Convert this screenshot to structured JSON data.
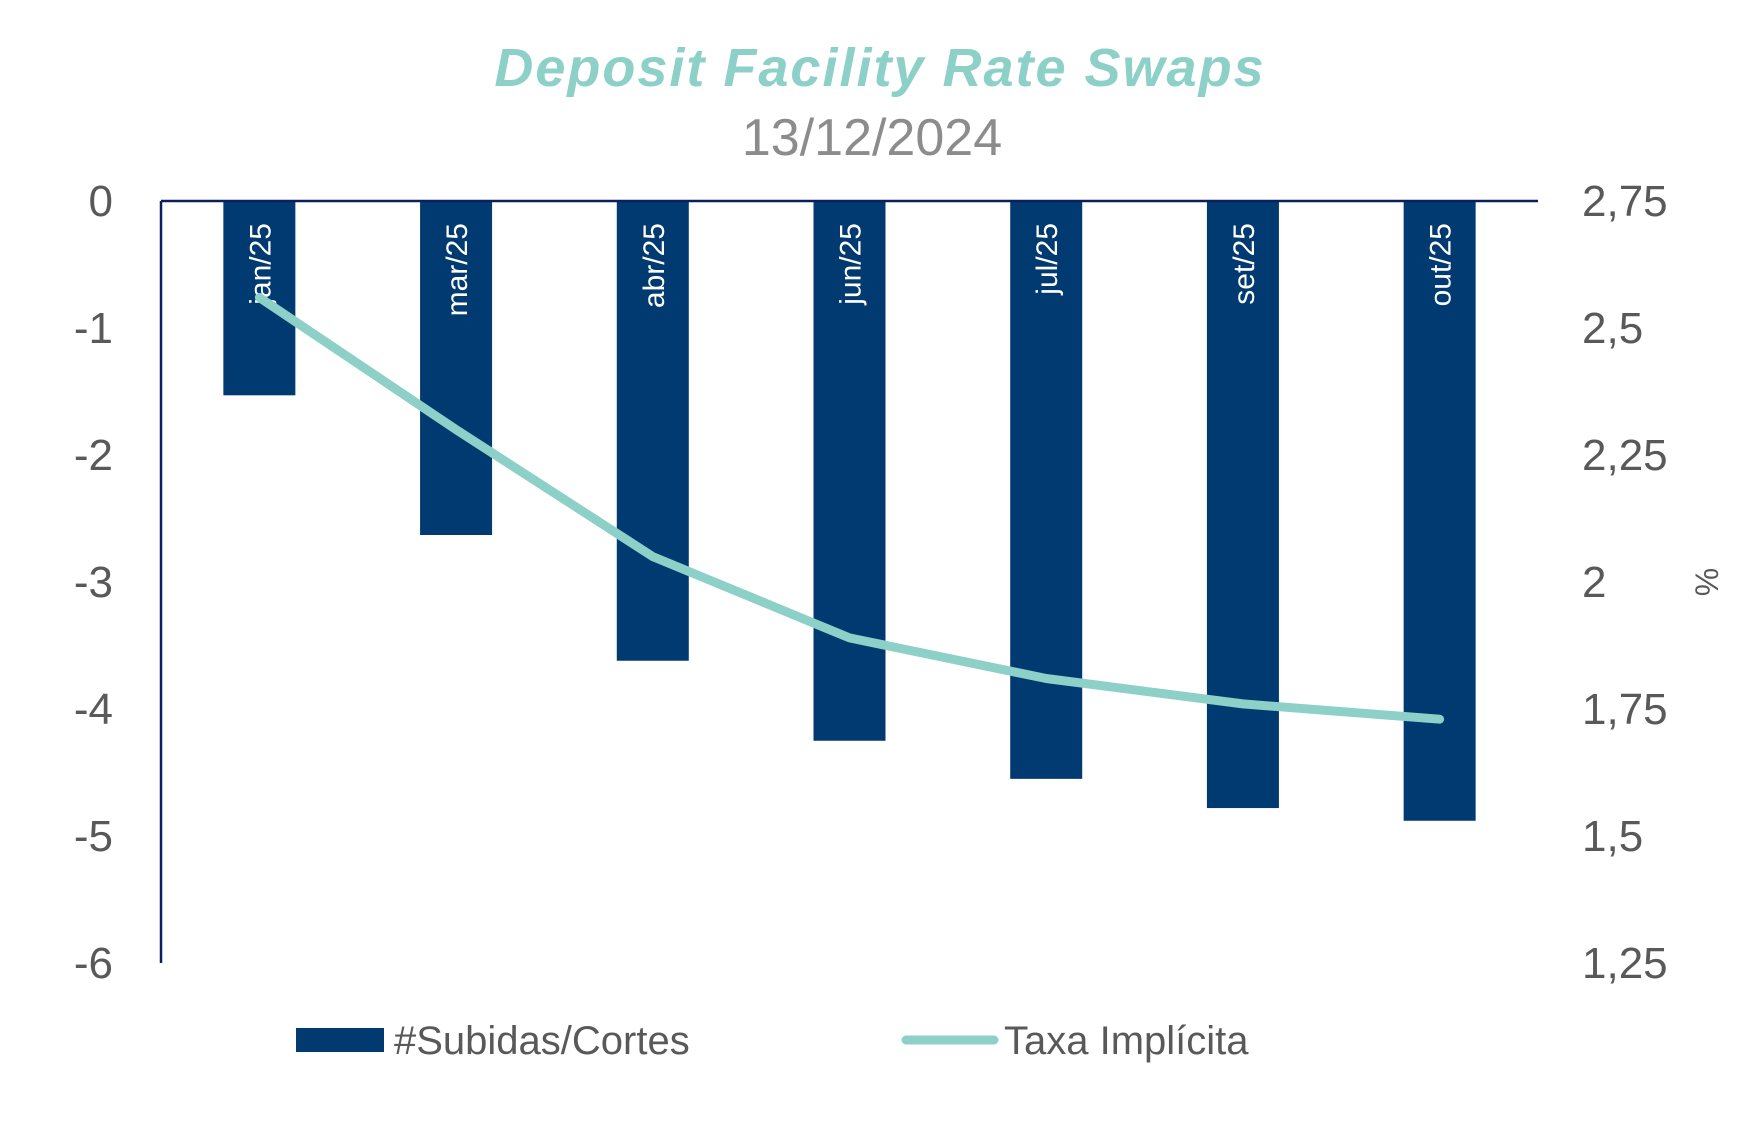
{
  "chart_data": {
    "type": "bar",
    "title": "Deposit Facility Rate Swaps",
    "subtitle": "13/12/2024",
    "categories": [
      "jan/25",
      "mar/25",
      "abr/25",
      "jun/25",
      "jul/25",
      "set/25",
      "out/25"
    ],
    "series": [
      {
        "name": "#Subidas/Cortes",
        "type": "bar",
        "axis": "left",
        "values": [
          -1.53,
          -2.63,
          -3.62,
          -4.25,
          -4.55,
          -4.78,
          -4.88
        ]
      },
      {
        "name": "Taxa Implícita",
        "type": "line",
        "axis": "right",
        "values": [
          2.56,
          2.3,
          2.05,
          1.89,
          1.81,
          1.76,
          1.73
        ]
      }
    ],
    "y_left": {
      "range": [
        -6,
        0
      ],
      "ticks": [
        "0",
        "-1",
        "-2",
        "-3",
        "-4",
        "-5",
        "-6"
      ]
    },
    "y_right": {
      "range": [
        1.25,
        2.75
      ],
      "ticks": [
        "2,75",
        "2,5",
        "2,25",
        "2",
        "1,75",
        "1,5",
        "1,25"
      ],
      "label": "%"
    },
    "legend_position": "bottom",
    "grid": false,
    "colors": {
      "title": "#8dd0c8",
      "bar": "#003a70",
      "line": "#8dd0c8",
      "axis": "#0a1f5c",
      "text": "#595959"
    }
  }
}
